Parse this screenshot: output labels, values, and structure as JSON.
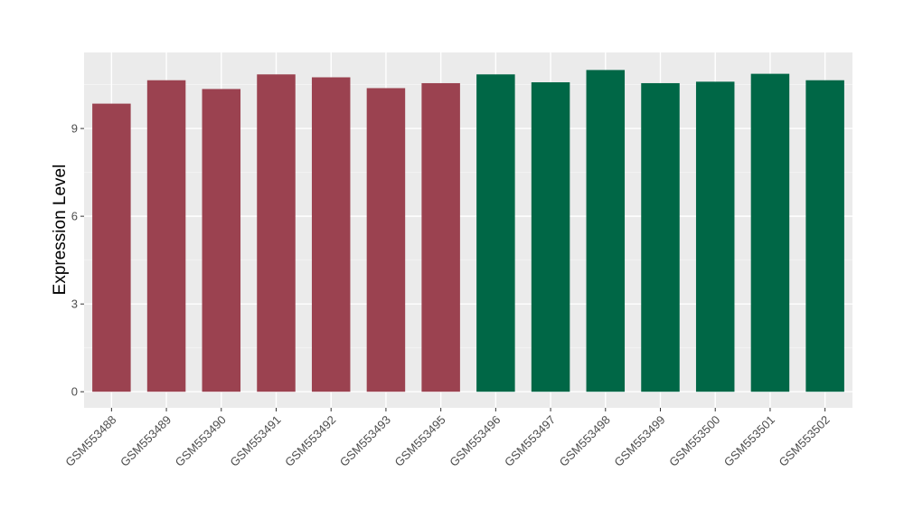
{
  "chart_data": {
    "type": "bar",
    "title": "",
    "xlabel": "",
    "ylabel": "Expression Level",
    "ylim": [
      -0.55,
      11.6
    ],
    "yticks": [
      0,
      3,
      6,
      9
    ],
    "grid": true,
    "categories": [
      "GSM553488",
      "GSM553489",
      "GSM553490",
      "GSM553491",
      "GSM553492",
      "GSM553493",
      "GSM553495",
      "GSM553496",
      "GSM553497",
      "GSM553498",
      "GSM553499",
      "GSM553500",
      "GSM553501",
      "GSM553502"
    ],
    "values": [
      9.85,
      10.65,
      10.35,
      10.85,
      10.75,
      10.38,
      10.55,
      10.85,
      10.58,
      11.0,
      10.55,
      10.6,
      10.87,
      10.65
    ],
    "groups": [
      "a",
      "a",
      "a",
      "a",
      "a",
      "a",
      "a",
      "b",
      "b",
      "b",
      "b",
      "b",
      "b",
      "b"
    ],
    "colors": {
      "a": "#9B4250",
      "b": "#006746",
      "panel": "#EBEBEB",
      "grid_major": "#FFFFFF",
      "grid_minor": "#F5F5F5",
      "tick_text": "#4D4D4D",
      "axis_title": "#000000"
    }
  }
}
